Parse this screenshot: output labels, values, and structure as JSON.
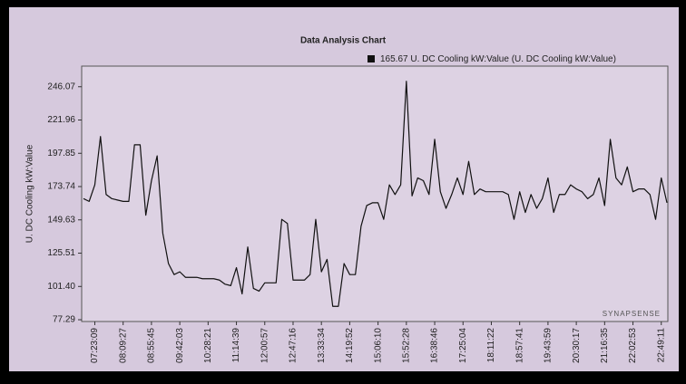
{
  "chart_data": {
    "type": "line",
    "title": "Data Analysis Chart",
    "y_label": "U. DC Cooling kW:Value",
    "watermark": "SYNAPSENSE",
    "categories": [
      null,
      null,
      "07:23:09",
      null,
      null,
      null,
      null,
      "08:09:27",
      null,
      null,
      null,
      null,
      "08:55:45",
      null,
      null,
      null,
      null,
      "09:42:03",
      null,
      null,
      null,
      null,
      "10:28:21",
      null,
      null,
      null,
      null,
      "11:14:39",
      null,
      null,
      null,
      null,
      "12:00:57",
      null,
      null,
      null,
      null,
      "12:47:16",
      null,
      null,
      null,
      null,
      "13:33:34",
      null,
      null,
      null,
      null,
      "14:19:52",
      null,
      null,
      null,
      null,
      "15:06:10",
      null,
      null,
      null,
      null,
      "15:52:28",
      null,
      null,
      null,
      null,
      "16:38:46",
      null,
      null,
      null,
      null,
      "17:25:04",
      null,
      null,
      null,
      null,
      "18:11:22",
      null,
      null,
      null,
      null,
      "18:57:41",
      null,
      null,
      null,
      null,
      "19:43:59",
      null,
      null,
      null,
      null,
      "20:30:17",
      null,
      null,
      null,
      null,
      "21:16:35",
      null,
      null,
      null,
      null,
      "22:02:53",
      null,
      null,
      null,
      null,
      "22:49:11",
      null
    ],
    "series": [
      {
        "name": "165.67 U. DC Cooling kW:Value (U. DC Cooling kW:Value)",
        "color": "#111111",
        "values": [
          165,
          163,
          175,
          210,
          168,
          165,
          164,
          163,
          163,
          204,
          204,
          153,
          178,
          196,
          140,
          118,
          110,
          112,
          108,
          108,
          108,
          107,
          107,
          107,
          106,
          103,
          102,
          115,
          96,
          130,
          100,
          98,
          104,
          104,
          104,
          150,
          147,
          106,
          106,
          106,
          110,
          150,
          112,
          121,
          87,
          87,
          118,
          110,
          110,
          145,
          160,
          162,
          162,
          150,
          175,
          168,
          175,
          250,
          167,
          180,
          178,
          168,
          208,
          170,
          158,
          168,
          180,
          168,
          192,
          168,
          172,
          170,
          170,
          170,
          170,
          168,
          150,
          170,
          155,
          168,
          158,
          165,
          180,
          155,
          168,
          168,
          175,
          172,
          170,
          165,
          168,
          180,
          160,
          208,
          180,
          175,
          188,
          170,
          172,
          172,
          168,
          150,
          180,
          162
        ]
      }
    ],
    "ylim": [
      76,
      261
    ],
    "yticks": [
      77.29,
      {
        "value": 101.4,
        "label": "101.40"
      },
      125.51,
      149.63,
      173.74,
      197.85,
      221.96,
      246.07
    ],
    "grid": false
  }
}
